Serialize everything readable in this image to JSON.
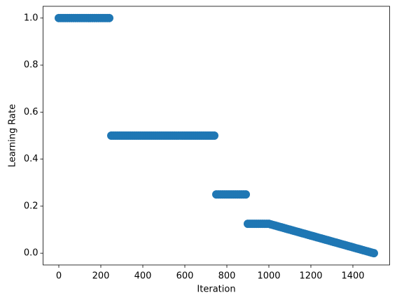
{
  "chart_data": {
    "type": "scatter",
    "xlabel": "Iteration",
    "ylabel": "Learning Rate",
    "color": "#1f77b4",
    "grid": false,
    "xlim": [
      -75,
      1575
    ],
    "ylim": [
      -0.05,
      1.05
    ],
    "xticks": [
      0,
      200,
      400,
      600,
      800,
      1000,
      1200,
      1400
    ],
    "yticks": [
      {
        "value": 0,
        "label": "0.0"
      },
      0.2,
      0.4,
      0.6,
      0.8,
      {
        "value": 1,
        "label": "1.0"
      }
    ],
    "x": [
      0,
      10,
      20,
      30,
      40,
      50,
      60,
      70,
      80,
      90,
      100,
      110,
      120,
      130,
      140,
      150,
      160,
      170,
      180,
      190,
      200,
      210,
      220,
      230,
      240,
      250,
      260,
      270,
      280,
      290,
      300,
      310,
      320,
      330,
      340,
      350,
      360,
      370,
      380,
      390,
      400,
      410,
      420,
      430,
      440,
      450,
      460,
      470,
      480,
      490,
      500,
      510,
      520,
      530,
      540,
      550,
      560,
      570,
      580,
      590,
      600,
      610,
      620,
      630,
      640,
      650,
      660,
      670,
      680,
      690,
      700,
      710,
      720,
      730,
      740,
      750,
      760,
      770,
      780,
      790,
      800,
      810,
      820,
      830,
      840,
      850,
      860,
      870,
      880,
      890,
      900,
      910,
      920,
      930,
      940,
      950,
      960,
      970,
      980,
      990,
      1000,
      1010,
      1020,
      1030,
      1040,
      1050,
      1060,
      1070,
      1080,
      1090,
      1100,
      1110,
      1120,
      1130,
      1140,
      1150,
      1160,
      1170,
      1180,
      1190,
      1200,
      1210,
      1220,
      1230,
      1240,
      1250,
      1260,
      1270,
      1280,
      1290,
      1300,
      1310,
      1320,
      1330,
      1340,
      1350,
      1360,
      1370,
      1380,
      1390,
      1400,
      1410,
      1420,
      1430,
      1440,
      1450,
      1460,
      1470,
      1480,
      1490,
      1500
    ],
    "y": [
      1,
      1,
      1,
      1,
      1,
      1,
      1,
      1,
      1,
      1,
      1,
      1,
      1,
      1,
      1,
      1,
      1,
      1,
      1,
      1,
      1,
      1,
      1,
      1,
      1,
      0.5,
      0.5,
      0.5,
      0.5,
      0.5,
      0.5,
      0.5,
      0.5,
      0.5,
      0.5,
      0.5,
      0.5,
      0.5,
      0.5,
      0.5,
      0.5,
      0.5,
      0.5,
      0.5,
      0.5,
      0.5,
      0.5,
      0.5,
      0.5,
      0.5,
      0.5,
      0.5,
      0.5,
      0.5,
      0.5,
      0.5,
      0.5,
      0.5,
      0.5,
      0.5,
      0.5,
      0.5,
      0.5,
      0.5,
      0.5,
      0.5,
      0.5,
      0.5,
      0.5,
      0.5,
      0.5,
      0.5,
      0.5,
      0.5,
      0.5,
      0.25,
      0.25,
      0.25,
      0.25,
      0.25,
      0.25,
      0.25,
      0.25,
      0.25,
      0.25,
      0.25,
      0.25,
      0.25,
      0.25,
      0.25,
      0.125,
      0.125,
      0.125,
      0.125,
      0.125,
      0.125,
      0.125,
      0.125,
      0.125,
      0.125,
      0.125,
      0.1225,
      0.12,
      0.1175,
      0.115,
      0.1125,
      0.11,
      0.1075,
      0.105,
      0.1025,
      0.1,
      0.0975,
      0.095,
      0.0925,
      0.09,
      0.0875,
      0.085,
      0.0825,
      0.08,
      0.0775,
      0.075,
      0.0725,
      0.07,
      0.0675,
      0.065,
      0.0625,
      0.06,
      0.0575,
      0.055,
      0.0525,
      0.05,
      0.0475,
      0.045,
      0.0425,
      0.04,
      0.0375,
      0.035,
      0.0325,
      0.03,
      0.0275,
      0.025,
      0.0225,
      0.02,
      0.0175,
      0.015,
      0.0125,
      0.01,
      0.0075,
      0.005,
      0.0025,
      0
    ]
  }
}
